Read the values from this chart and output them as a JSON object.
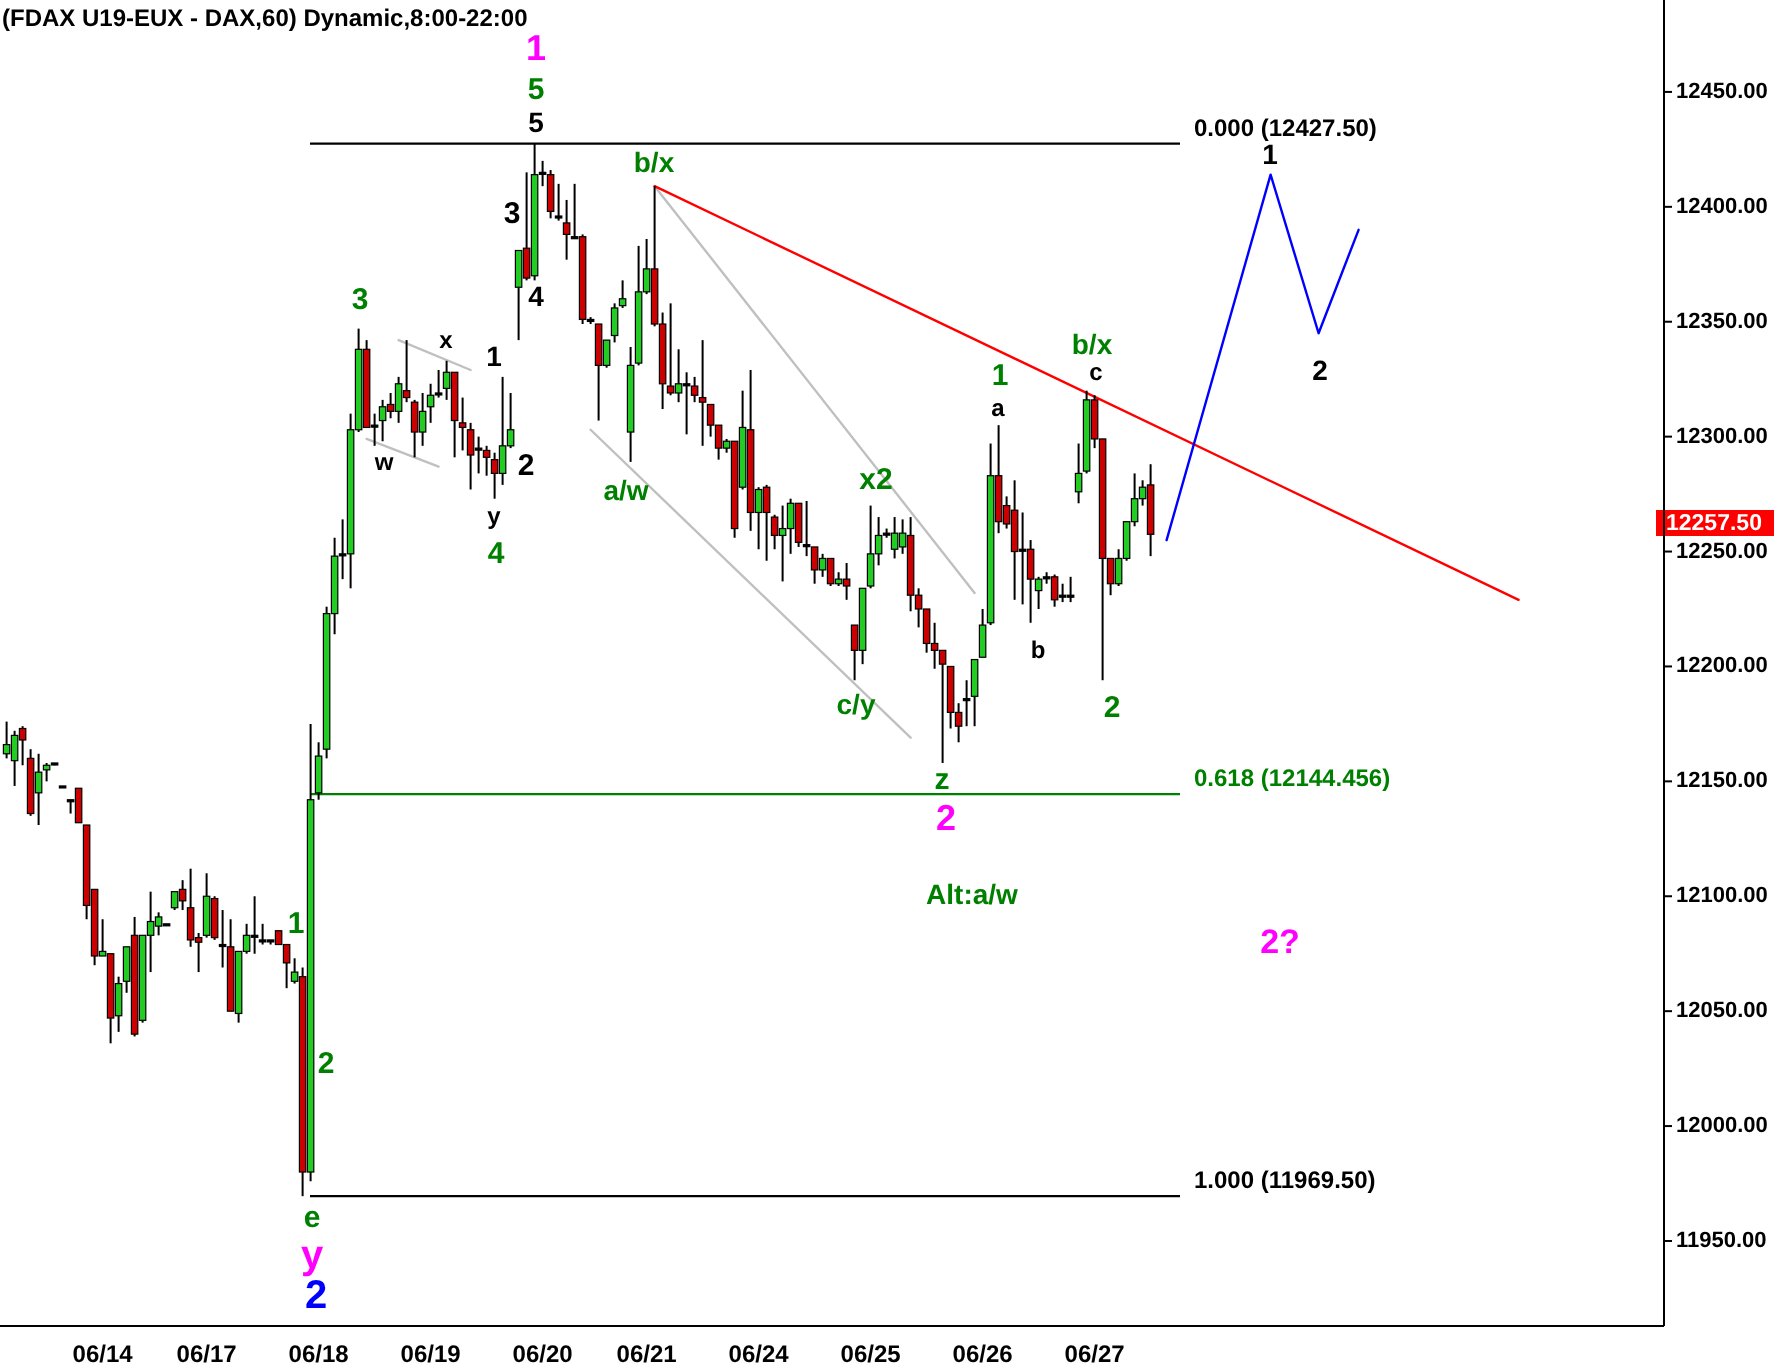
{
  "chart_data": {
    "type": "candlestick",
    "title": "(FDAX U19-EUX - DAX,60) Dynamic,8:00-22:00",
    "categories": [
      null,
      null,
      null,
      null,
      null,
      null,
      null,
      null,
      null,
      null,
      null,
      null,
      "06/14",
      null,
      null,
      null,
      null,
      null,
      null,
      null,
      null,
      null,
      null,
      null,
      null,
      "06/17",
      null,
      null,
      null,
      null,
      null,
      null,
      null,
      null,
      null,
      null,
      null,
      null,
      null,
      "06/18",
      null,
      null,
      null,
      null,
      null,
      null,
      null,
      null,
      null,
      null,
      null,
      null,
      null,
      "06/19",
      null,
      null,
      null,
      null,
      null,
      null,
      null,
      null,
      null,
      null,
      null,
      null,
      null,
      "06/20",
      null,
      null,
      null,
      null,
      null,
      null,
      null,
      null,
      null,
      null,
      null,
      null,
      "06/21",
      null,
      null,
      null,
      null,
      null,
      null,
      null,
      null,
      null,
      null,
      null,
      null,
      null,
      "06/24",
      null,
      null,
      null,
      null,
      null,
      null,
      null,
      null,
      null,
      null,
      null,
      null,
      null,
      "06/25",
      null,
      null,
      null,
      null,
      null,
      null,
      null,
      null,
      null,
      null,
      null,
      null,
      null,
      "06/26",
      null,
      null,
      null,
      null,
      null,
      null,
      null,
      null,
      null,
      null,
      null,
      null,
      null,
      "06/27",
      null,
      null,
      null,
      null,
      null,
      null,
      null,
      null,
      null,
      null,
      null,
      null,
      null,
      null,
      null,
      null,
      null,
      null,
      null,
      null,
      null,
      null,
      null,
      null,
      null,
      null,
      null,
      null,
      null,
      null,
      null,
      null,
      null,
      null,
      null,
      null,
      null,
      null,
      null,
      null,
      null,
      null,
      null,
      null,
      null,
      null,
      null,
      null,
      null,
      null,
      null,
      null,
      null,
      null,
      null,
      null,
      null,
      null,
      null,
      null,
      null,
      null,
      null,
      null,
      null,
      null,
      null,
      null,
      null,
      null
    ],
    "ylim": [
      11913,
      12490
    ],
    "yticks": [
      {
        "value": 11950,
        "label": "11950.00"
      },
      {
        "value": 12000,
        "label": "12000.00"
      },
      {
        "value": 12050,
        "label": "12050.00"
      },
      {
        "value": 12100,
        "label": "12100.00"
      },
      {
        "value": 12150,
        "label": "12150.00"
      },
      {
        "value": 12200,
        "label": "12200.00"
      },
      {
        "value": 12250,
        "label": "12250.00"
      },
      {
        "value": 12300,
        "label": "12300.00"
      },
      {
        "value": 12350,
        "label": "12350.00"
      },
      {
        "value": 12400,
        "label": "12400.00"
      },
      {
        "value": 12450,
        "label": "12450.00"
      }
    ],
    "ohlc": [
      [
        12162,
        12176,
        12160,
        12166
      ],
      [
        12159,
        12172,
        12148,
        12170
      ],
      [
        12173,
        12174,
        12157,
        12168
      ],
      [
        12160,
        12164,
        12135,
        12136
      ],
      [
        12145,
        12162,
        12131,
        12154
      ],
      [
        12155,
        12158,
        12150,
        12157
      ],
      [
        12158,
        12158,
        12157,
        12158
      ],
      [
        12148,
        12148,
        12148,
        12148
      ],
      [
        12142,
        12142,
        12136,
        12142
      ],
      [
        12147,
        12147,
        12132,
        12132
      ],
      [
        12131,
        12131,
        12090,
        12096
      ],
      [
        12103,
        12103,
        12070,
        12074
      ],
      [
        12074,
        12090,
        12074,
        12076
      ],
      [
        12075,
        12075,
        12036,
        12047
      ],
      [
        12048,
        12065,
        12041,
        12062
      ],
      [
        12063,
        12078,
        12058,
        12078
      ],
      [
        12083,
        12091,
        12039,
        12040
      ],
      [
        12046,
        12083,
        12045,
        12083
      ],
      [
        12083,
        12102,
        12067,
        12089
      ],
      [
        12087,
        12093,
        12083,
        12091
      ],
      [
        12088,
        12088,
        12088,
        12088
      ],
      [
        12095,
        12102,
        12094,
        12102
      ],
      [
        12103,
        12107,
        12094,
        12098
      ],
      [
        12095,
        12112,
        12078,
        12081
      ],
      [
        12082,
        12084,
        12067,
        12080
      ],
      [
        12083,
        12110,
        12082,
        12100
      ],
      [
        12099,
        12100,
        12081,
        12082
      ],
      [
        12079,
        12094,
        12069,
        12079
      ],
      [
        12078,
        12090,
        12050,
        12050
      ],
      [
        12049,
        12076,
        12045,
        12076
      ],
      [
        12076,
        12088,
        12075,
        12083
      ],
      [
        12083,
        12100,
        12075,
        12083
      ],
      [
        12081,
        12088,
        12079,
        12081
      ],
      [
        12081,
        12081,
        12079,
        12081
      ],
      [
        12085,
        12085,
        12079,
        12079
      ],
      [
        12079,
        12079,
        12060,
        12071
      ],
      [
        12063,
        12073,
        12062,
        12067
      ],
      [
        12065,
        12069,
        11969.5,
        11980
      ],
      [
        11980,
        12175,
        11976,
        12142
      ],
      [
        12145,
        12167,
        12142,
        12161
      ],
      [
        12164,
        12226,
        12160,
        12223
      ],
      [
        12223,
        12256,
        12214,
        12248
      ],
      [
        12249,
        12264,
        12238,
        12249
      ],
      [
        12249,
        12310,
        12234,
        12303
      ],
      [
        12303,
        12347,
        12302,
        12338
      ],
      [
        12338,
        12342,
        12304,
        12304
      ],
      [
        12305,
        12310,
        12296,
        12305
      ],
      [
        12307,
        12316,
        12298,
        12313
      ],
      [
        12314,
        12319,
        12308,
        12311
      ],
      [
        12311,
        12326,
        12306,
        12323
      ],
      [
        12320,
        12342,
        12315,
        12317
      ],
      [
        12315,
        12316,
        12291,
        12302
      ],
      [
        12302,
        12319,
        12296,
        12311
      ],
      [
        12313,
        12323,
        12306,
        12318
      ],
      [
        12319,
        12329,
        12317,
        12319
      ],
      [
        12321,
        12333,
        12316,
        12328
      ],
      [
        12328,
        12328,
        12291,
        12307
      ],
      [
        12306,
        12317,
        12294,
        12304
      ],
      [
        12303,
        12306,
        12277,
        12292
      ],
      [
        12295,
        12300,
        12284,
        12295
      ],
      [
        12294,
        12296,
        12283,
        12291
      ],
      [
        12290,
        12293,
        12273,
        12284
      ],
      [
        12284,
        12326,
        12279,
        12296
      ],
      [
        12296,
        12319,
        12295,
        12303
      ],
      [
        12365,
        12381,
        12342,
        12381
      ],
      [
        12382,
        12415,
        12368,
        12369
      ],
      [
        12370,
        12427.5,
        12368,
        12414
      ],
      [
        12415,
        12420,
        12409,
        12415
      ],
      [
        12414,
        12416,
        12395,
        12398
      ],
      [
        12396,
        12410,
        12394,
        12396
      ],
      [
        12393,
        12403,
        12377,
        12388
      ],
      [
        12387,
        12410,
        12386,
        12387
      ],
      [
        12387,
        12388,
        12349,
        12351
      ],
      [
        12351,
        12352,
        12349,
        12351
      ],
      [
        12349,
        12349,
        12307,
        12331
      ],
      [
        12331,
        12342,
        12330,
        12342
      ],
      [
        12344,
        12358,
        12341,
        12356
      ],
      [
        12357,
        12368,
        12356,
        12360
      ],
      [
        12302,
        12339,
        12289,
        12331
      ],
      [
        12332,
        12383,
        12331,
        12363
      ],
      [
        12363,
        12386,
        12362,
        12373
      ],
      [
        12373,
        12409,
        12348,
        12349
      ],
      [
        12349,
        12354,
        12312,
        12323
      ],
      [
        12322,
        12358,
        12318,
        12319
      ],
      [
        12319,
        12338,
        12315,
        12323
      ],
      [
        12323,
        12328,
        12301,
        12323
      ],
      [
        12322,
        12326,
        12315,
        12318
      ],
      [
        12317,
        12342,
        12296,
        12315
      ],
      [
        12314,
        12314,
        12300,
        12305
      ],
      [
        12305,
        12305,
        12290,
        12295
      ],
      [
        12295,
        12299,
        12293,
        12298
      ],
      [
        12298,
        12298,
        12256,
        12260
      ],
      [
        12278,
        12320,
        12277,
        12304
      ],
      [
        12303,
        12329,
        12259,
        12267
      ],
      [
        12267,
        12278,
        12251,
        12277
      ],
      [
        12278,
        12279,
        12246,
        12267
      ],
      [
        12265,
        12266,
        12251,
        12257
      ],
      [
        12257,
        12270,
        12237,
        12260
      ],
      [
        12260,
        12273,
        12249,
        12271
      ],
      [
        12271,
        12271,
        12252,
        12254
      ],
      [
        12253,
        12272,
        12248,
        12253
      ],
      [
        12252,
        12252,
        12236,
        12242
      ],
      [
        12242,
        12249,
        12239,
        12247
      ],
      [
        12247,
        12247,
        12235,
        12236
      ],
      [
        12236,
        12241,
        12235,
        12238
      ],
      [
        12238,
        12245,
        12229,
        12235
      ],
      [
        12218,
        12218,
        12194,
        12207
      ],
      [
        12207,
        12234,
        12201,
        12234
      ],
      [
        12235,
        12270,
        12234,
        12249
      ],
      [
        12249,
        12265,
        12244,
        12257
      ],
      [
        12258,
        12260,
        12256,
        12258
      ],
      [
        12251,
        12265,
        12247,
        12258
      ],
      [
        12252,
        12264,
        12249,
        12258
      ],
      [
        12257,
        12265,
        12224,
        12231
      ],
      [
        12231,
        12234,
        12217,
        12225
      ],
      [
        12225,
        12225,
        12206,
        12210
      ],
      [
        12210,
        12219,
        12199,
        12207
      ],
      [
        12207,
        12207,
        12158,
        12201
      ],
      [
        12200,
        12200,
        12173,
        12180
      ],
      [
        12180,
        12184,
        12167,
        12174
      ],
      [
        12186,
        12194,
        12174,
        12186
      ],
      [
        12187,
        12203,
        12174,
        12203
      ],
      [
        12204,
        12225,
        12204,
        12218
      ],
      [
        12219,
        12297,
        12218,
        12283
      ],
      [
        12283,
        12305,
        12258,
        12263
      ],
      [
        12270,
        12274,
        12260,
        12262
      ],
      [
        12268,
        12281,
        12229,
        12250
      ],
      [
        12251,
        12267,
        12227,
        12251
      ],
      [
        12251,
        12255,
        12219,
        12238
      ],
      [
        12233,
        12239,
        12225,
        12238
      ],
      [
        12239,
        12241,
        12236,
        12239
      ],
      [
        12239,
        12240,
        12226,
        12229
      ],
      [
        12231,
        12236,
        12228,
        12231
      ],
      [
        12231,
        12239,
        12228,
        12231
      ],
      [
        12276,
        12297,
        12271,
        12284
      ],
      [
        12285,
        12320,
        12284,
        12316
      ],
      [
        12316,
        12318,
        12295,
        12299
      ],
      [
        12299,
        12299,
        12194,
        12247
      ],
      [
        12247,
        12247,
        12231,
        12236
      ],
      [
        12236,
        12251,
        12235,
        12247
      ],
      [
        12247,
        12263,
        12246,
        12263
      ],
      [
        12263,
        12284,
        12261,
        12273
      ],
      [
        12273,
        12281,
        12270,
        12278
      ],
      [
        12279,
        12288,
        12248,
        12257.5
      ],
      null,
      null,
      null,
      null,
      null,
      null,
      null,
      null,
      null,
      null,
      null,
      null,
      null,
      null,
      null,
      null,
      null,
      null,
      null,
      null,
      null,
      null,
      null,
      null,
      null,
      null,
      null,
      null,
      null,
      null,
      null,
      null,
      null,
      null,
      null,
      null,
      null,
      null,
      null,
      null,
      null,
      null,
      null,
      null,
      null,
      null,
      null,
      null,
      null,
      null,
      null,
      null,
      null,
      null,
      null,
      null,
      null,
      null,
      null,
      null,
      null,
      null,
      null
    ],
    "colors": [
      "#22cc22",
      "#22cc22",
      "#cc0000",
      "#cc0000",
      "#22cc22",
      "#22cc22",
      "#000000",
      "#000000",
      "#000000",
      "#cc0000",
      "#cc0000",
      "#cc0000",
      "#22cc22",
      "#cc0000",
      "#22cc22",
      "#22cc22",
      "#cc0000",
      "#22cc22",
      "#22cc22",
      "#22cc22",
      "#000000",
      "#22cc22",
      "#cc0000",
      "#cc0000",
      "#cc0000",
      "#22cc22",
      "#cc0000",
      "#000000",
      "#cc0000",
      "#22cc22",
      "#22cc22",
      "#000000",
      "#000000",
      "#000000",
      "#cc0000",
      "#cc0000",
      "#22cc22",
      "#cc0000",
      "#22cc22",
      "#22cc22",
      "#22cc22",
      "#22cc22",
      "#000000",
      "#22cc22",
      "#22cc22",
      "#cc0000",
      "#000000",
      "#22cc22",
      "#cc0000",
      "#22cc22",
      "#cc0000",
      "#cc0000",
      "#22cc22",
      "#22cc22",
      "#000000",
      "#22cc22",
      "#cc0000",
      "#cc0000",
      "#cc0000",
      "#000000",
      "#cc0000",
      "#cc0000",
      "#22cc22",
      "#22cc22",
      "#22cc22",
      "#cc0000",
      "#22cc22",
      "#000000",
      "#cc0000",
      "#000000",
      "#cc0000",
      "#000000",
      "#cc0000",
      "#000000",
      "#cc0000",
      "#22cc22",
      "#22cc22",
      "#22cc22",
      "#22cc22",
      "#22cc22",
      "#22cc22",
      "#cc0000",
      "#cc0000",
      "#cc0000",
      "#22cc22",
      "#000000",
      "#cc0000",
      "#cc0000",
      "#cc0000",
      "#cc0000",
      "#22cc22",
      "#cc0000",
      "#22cc22",
      "#cc0000",
      "#22cc22",
      "#cc0000",
      "#cc0000",
      "#22cc22",
      "#22cc22",
      "#cc0000",
      "#000000",
      "#cc0000",
      "#22cc22",
      "#cc0000",
      "#22cc22",
      "#cc0000",
      "#cc0000",
      "#22cc22",
      "#22cc22",
      "#22cc22",
      "#000000",
      "#22cc22",
      "#22cc22",
      "#cc0000",
      "#cc0000",
      "#cc0000",
      "#cc0000",
      "#cc0000",
      "#cc0000",
      "#cc0000",
      "#000000",
      "#22cc22",
      "#22cc22",
      "#22cc22",
      "#cc0000",
      "#cc0000",
      "#cc0000",
      "#000000",
      "#cc0000",
      "#22cc22",
      "#000000",
      "#cc0000",
      "#000000",
      "#000000",
      "#22cc22",
      "#22cc22",
      "#cc0000",
      "#cc0000",
      "#cc0000",
      "#22cc22",
      "#22cc22",
      "#22cc22",
      "#22cc22",
      "#cc0000",
      null,
      null,
      null,
      null,
      null,
      null,
      null,
      null,
      null,
      null,
      null,
      null,
      null,
      null,
      null,
      null,
      null,
      null,
      null,
      null,
      null,
      null,
      null,
      null,
      null,
      null,
      null,
      null,
      null,
      null,
      null,
      null,
      null,
      null,
      null,
      null,
      null,
      null,
      null,
      null,
      null,
      null,
      null,
      null,
      null,
      null,
      null,
      null,
      null,
      null,
      null,
      null,
      null,
      null,
      null,
      null,
      null,
      null,
      null,
      null,
      null,
      null,
      null
    ],
    "ref_lines": [
      {
        "axis": "y",
        "value": 12427.5,
        "label": "0.000 (12427.50)",
        "color": "#000000"
      },
      {
        "axis": "y",
        "value": 12144.456,
        "label": "0.618 (12144.456)",
        "color": "#008000"
      },
      {
        "axis": "y",
        "value": 11969.5,
        "label": "1.000 (11969.50)",
        "color": "#000000"
      }
    ],
    "series": [
      {
        "type": "line",
        "color": "#c0c0c0",
        "values": [
          null,
          null,
          null,
          null,
          null,
          null,
          null,
          null,
          null,
          null,
          null,
          null,
          null,
          null,
          null,
          null,
          null,
          null,
          null,
          null,
          null,
          null,
          null,
          null,
          null,
          null,
          null,
          null,
          null,
          null,
          null,
          null,
          null,
          null,
          null,
          null,
          null,
          null,
          null,
          null,
          null,
          null,
          null,
          null,
          null,
          null,
          null,
          null,
          null,
          12342,
          null,
          null,
          null,
          null,
          null,
          null,
          null,
          null,
          12329,
          null,
          null,
          null,
          null,
          null,
          null,
          null,
          null,
          null,
          null,
          null,
          null,
          null,
          null,
          null,
          null,
          null,
          null,
          null,
          null,
          null,
          null,
          null,
          null,
          null,
          null,
          null,
          null,
          null,
          null,
          null,
          null,
          null,
          null,
          null,
          null,
          null,
          null,
          null,
          null,
          null,
          null,
          null,
          null,
          null,
          null,
          null,
          null,
          null,
          null,
          null,
          null,
          null,
          null,
          null,
          null,
          null,
          null,
          null,
          null,
          null,
          null,
          null,
          null,
          null,
          null,
          null,
          null,
          null,
          null,
          null,
          null,
          null,
          null,
          null,
          null,
          null,
          null,
          null,
          null,
          null,
          null,
          null,
          null,
          null,
          null,
          null,
          null,
          null,
          null,
          null,
          null,
          null,
          null,
          null,
          null,
          null,
          null,
          null,
          null,
          null,
          null,
          null,
          null,
          null,
          null,
          null,
          null,
          null,
          null,
          null,
          null,
          null,
          null,
          null,
          null,
          null,
          null,
          null,
          null,
          null,
          null,
          null,
          null,
          null,
          null,
          null,
          null,
          null,
          null,
          null,
          null,
          null,
          null,
          null,
          null,
          null,
          null,
          null,
          null,
          null,
          null,
          null,
          null,
          null,
          null,
          null,
          null
        ]
      },
      {
        "type": "line",
        "color": "#c0c0c0",
        "values": [
          null,
          null,
          null,
          null,
          null,
          null,
          null,
          null,
          null,
          null,
          null,
          null,
          null,
          null,
          null,
          null,
          null,
          null,
          null,
          null,
          null,
          null,
          null,
          null,
          null,
          null,
          null,
          null,
          null,
          null,
          null,
          null,
          null,
          null,
          null,
          null,
          null,
          null,
          null,
          null,
          null,
          null,
          null,
          null,
          null,
          12299,
          null,
          null,
          null,
          null,
          null,
          null,
          null,
          null,
          12287,
          null,
          null,
          null,
          null,
          null,
          null,
          null,
          null,
          null,
          null,
          null,
          null,
          null,
          null,
          null,
          null,
          null,
          null,
          null,
          null,
          null,
          null,
          null,
          null,
          null,
          null,
          null,
          null,
          null,
          null,
          null,
          null,
          null,
          null,
          null,
          null,
          null,
          null,
          null,
          null,
          null,
          null,
          null,
          null,
          null,
          null,
          null,
          null,
          null,
          null,
          null,
          null,
          null,
          null,
          null,
          null,
          null,
          null,
          null,
          null,
          null,
          null,
          null,
          null,
          null,
          null,
          null,
          null,
          null,
          null,
          null,
          null,
          null,
          null,
          null,
          null,
          null,
          null,
          null,
          null,
          null,
          null,
          null,
          null,
          null,
          null,
          null,
          null,
          null,
          null,
          null,
          null,
          null,
          null,
          null,
          null,
          null,
          null,
          null,
          null,
          null,
          null,
          null,
          null,
          null,
          null,
          null,
          null,
          null,
          null,
          null,
          null,
          null,
          null,
          null,
          null,
          null,
          null,
          null,
          null,
          null,
          null,
          null,
          null,
          null,
          null,
          null,
          null,
          null,
          null,
          null,
          null,
          null,
          null,
          null,
          null,
          null,
          null,
          null,
          null,
          null,
          null,
          null,
          null,
          null,
          null,
          null,
          null,
          null,
          null,
          null,
          null
        ]
      },
      {
        "type": "line",
        "color": "#c0c0c0",
        "values": [
          null,
          null,
          null,
          null,
          null,
          null,
          null,
          null,
          null,
          null,
          null,
          null,
          null,
          null,
          null,
          null,
          null,
          null,
          null,
          null,
          null,
          null,
          null,
          null,
          null,
          null,
          null,
          null,
          null,
          null,
          null,
          null,
          null,
          null,
          null,
          null,
          null,
          null,
          null,
          null,
          null,
          null,
          null,
          null,
          null,
          null,
          null,
          null,
          null,
          null,
          null,
          null,
          null,
          null,
          null,
          null,
          null,
          null,
          null,
          null,
          null,
          null,
          null,
          null,
          null,
          null,
          null,
          null,
          null,
          null,
          null,
          null,
          null,
          null,
          null,
          null,
          null,
          null,
          null,
          null,
          null,
          12409,
          null,
          null,
          null,
          null,
          null,
          null,
          null,
          null,
          null,
          null,
          null,
          null,
          null,
          null,
          null,
          null,
          null,
          null,
          null,
          null,
          null,
          null,
          null,
          null,
          null,
          null,
          null,
          null,
          null,
          null,
          null,
          null,
          null,
          null,
          null,
          null,
          null,
          null,
          null,
          12232,
          null,
          null,
          null,
          null,
          null,
          null,
          null,
          null,
          null,
          null,
          null,
          null,
          null,
          null,
          null,
          null,
          null,
          null,
          null,
          null,
          null,
          null,
          null,
          null,
          null,
          null,
          null,
          null,
          null,
          null,
          null,
          null,
          null,
          null,
          null,
          null,
          null,
          null,
          null,
          null,
          null,
          null,
          null,
          null,
          null,
          null,
          null,
          null,
          null,
          null,
          null,
          null,
          null,
          null,
          null,
          null,
          null,
          null,
          null,
          null,
          null,
          null,
          null,
          null,
          null,
          null,
          null,
          null,
          null,
          null,
          null,
          null,
          null,
          null,
          null,
          null,
          null,
          null,
          null,
          null,
          null,
          null,
          null,
          null,
          null
        ]
      },
      {
        "type": "line",
        "color": "#c0c0c0",
        "values": [
          null,
          null,
          null,
          null,
          null,
          null,
          null,
          null,
          null,
          null,
          null,
          null,
          null,
          null,
          null,
          null,
          null,
          null,
          null,
          null,
          null,
          null,
          null,
          null,
          null,
          null,
          null,
          null,
          null,
          null,
          null,
          null,
          null,
          null,
          null,
          null,
          null,
          null,
          null,
          null,
          null,
          null,
          null,
          null,
          null,
          null,
          null,
          null,
          null,
          null,
          null,
          null,
          null,
          null,
          null,
          null,
          null,
          null,
          null,
          null,
          null,
          null,
          null,
          null,
          null,
          null,
          null,
          null,
          null,
          null,
          null,
          null,
          null,
          12303,
          null,
          null,
          null,
          null,
          null,
          null,
          null,
          null,
          null,
          null,
          null,
          null,
          null,
          null,
          null,
          null,
          null,
          null,
          null,
          null,
          null,
          null,
          null,
          null,
          null,
          null,
          null,
          null,
          null,
          null,
          null,
          null,
          null,
          null,
          null,
          null,
          null,
          null,
          null,
          12169,
          null,
          null,
          null,
          null,
          null,
          null,
          null,
          null,
          null,
          null,
          null,
          null,
          null,
          null,
          null,
          null,
          null,
          null,
          null,
          null,
          null,
          null,
          null,
          null,
          null,
          null,
          null,
          null,
          null,
          null,
          null,
          null,
          null,
          null,
          null,
          null,
          null,
          null,
          null,
          null,
          null,
          null,
          null,
          null,
          null,
          null,
          null,
          null,
          null,
          null,
          null,
          null,
          null,
          null,
          null,
          null,
          null,
          null,
          null,
          null,
          null,
          null,
          null,
          null,
          null,
          null,
          null,
          null,
          null,
          null,
          null,
          null,
          null,
          null,
          null,
          null,
          null,
          null,
          null,
          null,
          null,
          null,
          null,
          null,
          null,
          null,
          null,
          null,
          null,
          null,
          null,
          null,
          null
        ]
      },
      {
        "type": "line",
        "color": "#ff0000",
        "values": [
          null,
          null,
          null,
          null,
          null,
          null,
          null,
          null,
          null,
          null,
          null,
          null,
          null,
          null,
          null,
          null,
          null,
          null,
          null,
          null,
          null,
          null,
          null,
          null,
          null,
          null,
          null,
          null,
          null,
          null,
          null,
          null,
          null,
          null,
          null,
          null,
          null,
          null,
          null,
          null,
          null,
          null,
          null,
          null,
          null,
          null,
          null,
          null,
          null,
          null,
          null,
          null,
          null,
          null,
          null,
          null,
          null,
          null,
          null,
          null,
          null,
          null,
          null,
          null,
          null,
          null,
          null,
          null,
          null,
          null,
          null,
          null,
          null,
          null,
          null,
          null,
          null,
          null,
          null,
          null,
          null,
          12409,
          null,
          null,
          null,
          null,
          null,
          null,
          null,
          null,
          null,
          null,
          null,
          null,
          null,
          null,
          null,
          null,
          null,
          null,
          null,
          null,
          null,
          null,
          null,
          null,
          null,
          null,
          null,
          null,
          null,
          null,
          null,
          null,
          null,
          null,
          null,
          null,
          null,
          null,
          null,
          null,
          null,
          null,
          null,
          null,
          null,
          null,
          null,
          null,
          null,
          null,
          null,
          null,
          null,
          null,
          null,
          null,
          null,
          null,
          null,
          null,
          null,
          null,
          null,
          null,
          null,
          null,
          null,
          null,
          null,
          null,
          null,
          null,
          null,
          null,
          null,
          null,
          null,
          null,
          null,
          null,
          null,
          null,
          null,
          null,
          null,
          null,
          null,
          null,
          null,
          null,
          null,
          null,
          null,
          null,
          null,
          null,
          null,
          null,
          null,
          null,
          null,
          null,
          null,
          null,
          null,
          null,
          null,
          12229,
          null,
          null,
          null,
          null,
          null,
          null,
          null,
          null,
          null,
          null,
          null,
          null,
          null,
          null,
          null,
          null,
          null
        ]
      },
      {
        "type": "line",
        "color": "#0000ff",
        "values": [
          null,
          null,
          null,
          null,
          null,
          null,
          null,
          null,
          null,
          null,
          null,
          null,
          null,
          null,
          null,
          null,
          null,
          null,
          null,
          null,
          null,
          null,
          null,
          null,
          null,
          null,
          null,
          null,
          null,
          null,
          null,
          null,
          null,
          null,
          null,
          null,
          null,
          null,
          null,
          null,
          null,
          null,
          null,
          null,
          null,
          null,
          null,
          null,
          null,
          null,
          null,
          null,
          null,
          null,
          null,
          null,
          null,
          null,
          null,
          null,
          null,
          null,
          null,
          null,
          null,
          null,
          null,
          null,
          null,
          null,
          null,
          null,
          null,
          null,
          null,
          null,
          null,
          null,
          null,
          null,
          null,
          null,
          null,
          null,
          null,
          null,
          null,
          null,
          null,
          null,
          null,
          null,
          null,
          null,
          null,
          null,
          null,
          null,
          null,
          null,
          null,
          null,
          null,
          null,
          null,
          null,
          null,
          null,
          null,
          null,
          null,
          null,
          null,
          null,
          null,
          null,
          null,
          null,
          null,
          null,
          null,
          null,
          null,
          null,
          null,
          null,
          null,
          null,
          null,
          null,
          null,
          null,
          null,
          null,
          null,
          null,
          null,
          null,
          null,
          null,
          null,
          null,
          null,
          null,
          null,
          12255,
          null,
          null,
          null,
          null,
          null,
          null,
          null,
          null,
          null,
          null,
          null,
          null,
          12414,
          null,
          null,
          null,
          null,
          null,
          12345,
          null,
          null,
          null,
          null,
          12390,
          null,
          null,
          null,
          null,
          null,
          null,
          null,
          null,
          null,
          null,
          null,
          null,
          null,
          null,
          null,
          null,
          null,
          null,
          null,
          null,
          null,
          null,
          null,
          null,
          null,
          null,
          null,
          null,
          null,
          null,
          null,
          null,
          null,
          null,
          null,
          null,
          null
        ]
      }
    ],
    "annotations": [
      "1",
      "5",
      "5",
      "3",
      "4",
      "b/x",
      "3",
      "x",
      "1",
      "w",
      "2",
      "y",
      "4",
      "a/w",
      "x2",
      "c/y",
      "z",
      "2",
      "1",
      "a",
      "b",
      "b/x",
      "c",
      "2",
      "1",
      "2",
      "Alt:a/w",
      "2?",
      "1",
      "2",
      "e",
      "y",
      "2",
      "12257.50"
    ]
  }
}
